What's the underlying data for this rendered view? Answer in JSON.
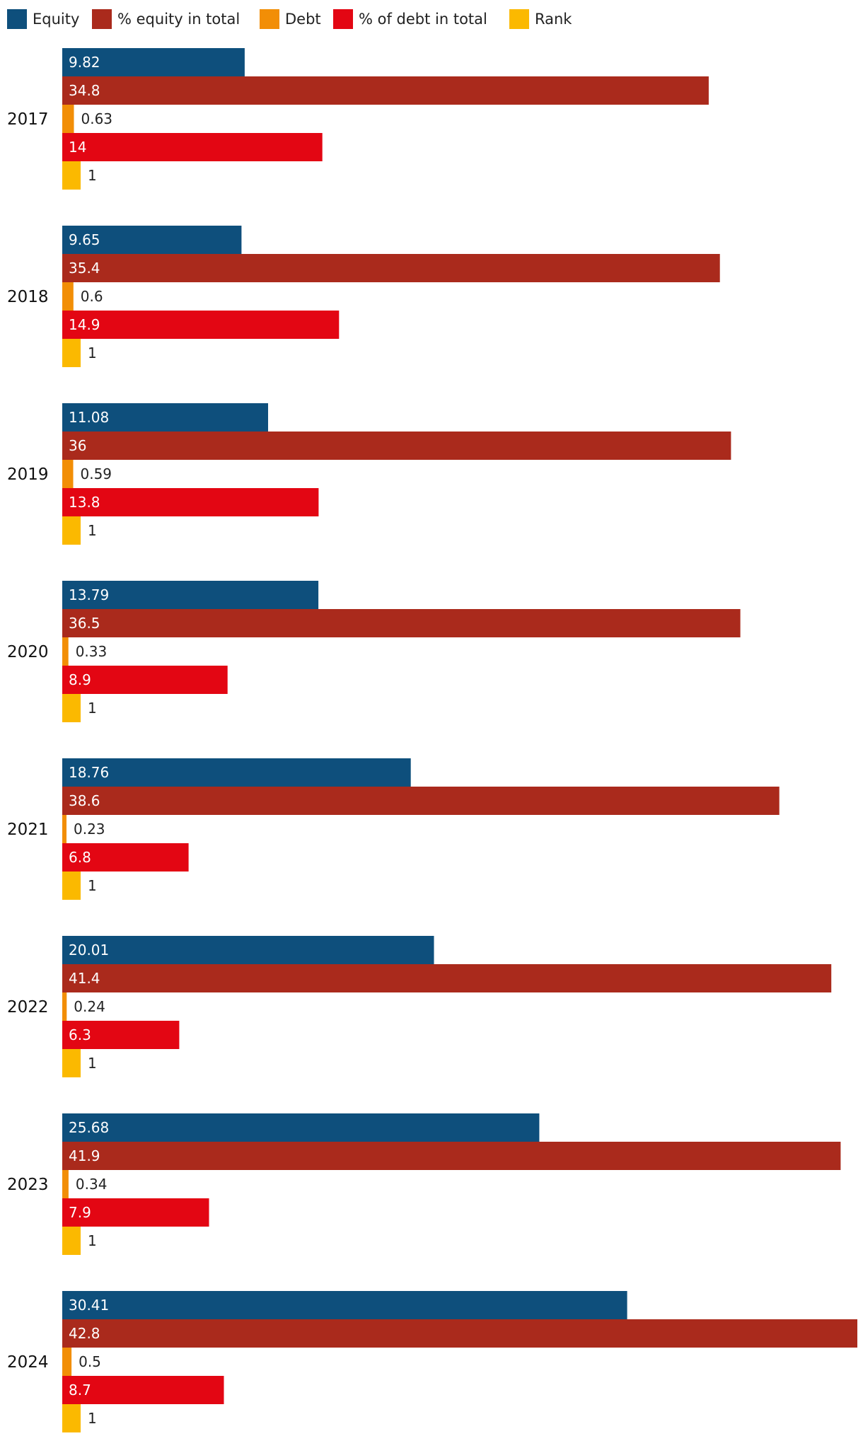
{
  "chart_data": {
    "type": "bar",
    "orientation": "horizontal",
    "title": "",
    "xlabel": "",
    "ylabel": "",
    "grid": false,
    "legend_position": "top-left",
    "categories": [
      "2017",
      "2018",
      "2019",
      "2020",
      "2021",
      "2022",
      "2023",
      "2024"
    ],
    "series": [
      {
        "name": "Equity",
        "color": "#0e4f7c",
        "values": [
          9.82,
          9.65,
          11.08,
          13.79,
          18.76,
          20.01,
          25.68,
          30.41
        ],
        "labels": [
          "9.82",
          "9.65",
          "11.08",
          "13.79",
          "18.76",
          "20.01",
          "25.68",
          "30.41"
        ]
      },
      {
        "name": "% equity in total",
        "color": "#aa2a1c",
        "values": [
          34.8,
          35.4,
          36,
          36.5,
          38.6,
          41.4,
          41.9,
          42.8
        ],
        "labels": [
          "34.8",
          "35.4",
          "36",
          "36.5",
          "38.6",
          "41.4",
          "41.9",
          "42.8"
        ]
      },
      {
        "name": "Debt",
        "color": "#f28e06",
        "values": [
          0.63,
          0.6,
          0.59,
          0.33,
          0.23,
          0.24,
          0.34,
          0.5
        ],
        "labels": [
          "0.63",
          "0.6",
          "0.59",
          "0.33",
          "0.23",
          "0.24",
          "0.34",
          "0.5"
        ]
      },
      {
        "name": "% of debt in total",
        "color": "#e30613",
        "values": [
          14,
          14.9,
          13.8,
          8.9,
          6.8,
          6.3,
          7.9,
          8.7
        ],
        "labels": [
          "14",
          "14.9",
          "13.8",
          "8.9",
          "6.8",
          "6.3",
          "7.9",
          "8.7"
        ]
      },
      {
        "name": "Rank",
        "color": "#fbb900",
        "values": [
          1,
          1,
          1,
          1,
          1,
          1,
          1,
          1
        ],
        "labels": [
          "1",
          "1",
          "1",
          "1",
          "1",
          "1",
          "1",
          "1"
        ]
      }
    ],
    "xlim": [
      0,
      42.8
    ]
  }
}
